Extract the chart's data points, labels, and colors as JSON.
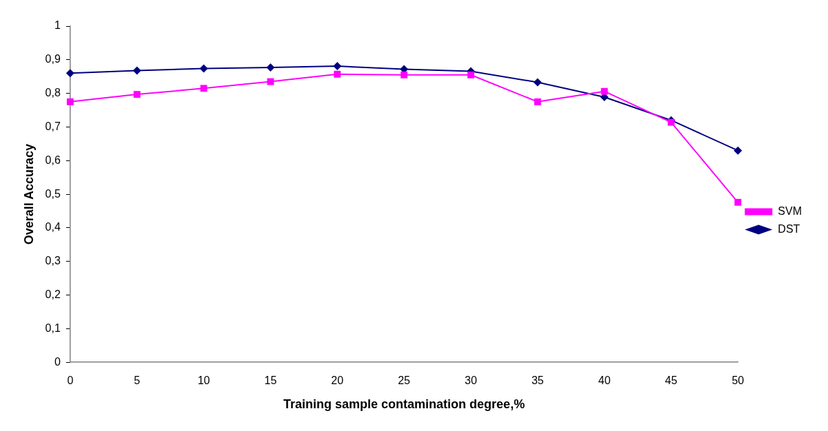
{
  "chart_data": {
    "type": "line",
    "xlabel": "Training sample contamination degree,%",
    "ylabel": "Overall Accuracy",
    "x": [
      0,
      5,
      10,
      15,
      20,
      25,
      30,
      35,
      40,
      45,
      50
    ],
    "series": [
      {
        "name": "DST",
        "color": "#000080",
        "marker": "diamond",
        "values": [
          0.86,
          0.868,
          0.874,
          0.877,
          0.881,
          0.872,
          0.866,
          0.833,
          0.789,
          0.72,
          0.63
        ]
      },
      {
        "name": "SVM",
        "color": "#ff00ff",
        "marker": "square",
        "values": [
          0.775,
          0.797,
          0.815,
          0.835,
          0.857,
          0.855,
          0.855,
          0.775,
          0.806,
          0.714,
          0.476
        ]
      }
    ],
    "xlim": [
      0,
      50
    ],
    "xticks": [
      0,
      5,
      10,
      15,
      20,
      25,
      30,
      35,
      40,
      45,
      50
    ],
    "ylim": [
      0,
      1
    ],
    "yticks": [
      0,
      {
        "value": 0.1,
        "label": "0,1"
      },
      {
        "value": 0.2,
        "label": "0,2"
      },
      {
        "value": 0.3,
        "label": "0,3"
      },
      {
        "value": 0.4,
        "label": "0,4"
      },
      {
        "value": 0.5,
        "label": "0,5"
      },
      {
        "value": 0.6,
        "label": "0,6"
      },
      {
        "value": 0.7,
        "label": "0,7"
      },
      {
        "value": 0.8,
        "label": "0,8"
      },
      {
        "value": 0.9,
        "label": "0,9"
      },
      1
    ],
    "grid": false,
    "legend": "right"
  }
}
